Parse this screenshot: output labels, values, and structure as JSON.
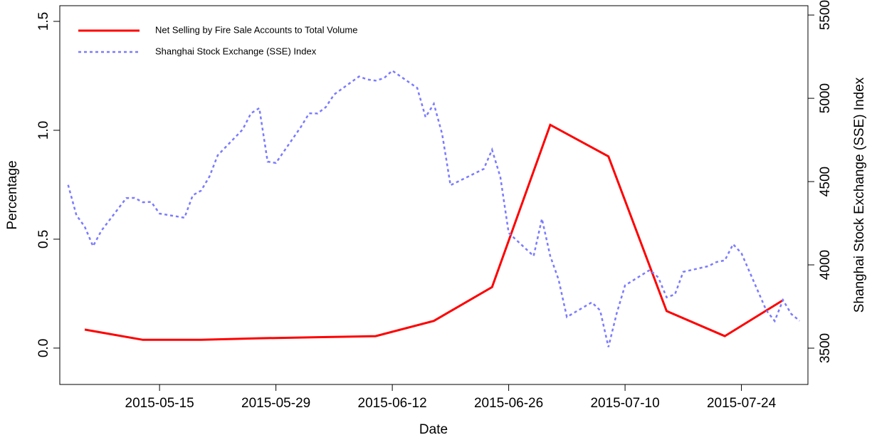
{
  "chart_data": {
    "type": "line",
    "x_label": "Date",
    "y_label": "Percentage",
    "y2_label": "Shanghai Stock Exchange (SSE) Index",
    "xlim": [
      "2015-05-03",
      "2015-08-01"
    ],
    "xticks": [
      "2015-05-15",
      "2015-05-29",
      "2015-06-12",
      "2015-06-26",
      "2015-07-10",
      "2015-07-24"
    ],
    "ylim": [
      -0.167,
      1.572
    ],
    "yticks": [
      {
        "value": 0,
        "label": "0.0"
      },
      0.5,
      {
        "value": 1,
        "label": "1.0"
      },
      1.5
    ],
    "y2lim": [
      3282,
      5556
    ],
    "y2ticks": [
      3500,
      4000,
      4500,
      5000,
      5500
    ],
    "legend": "top-left",
    "series": [
      {
        "name": "Net Selling by Fire Sale Accounts to Total Volume",
        "color": "#ff0000",
        "style": "solid",
        "x": [
          "2015-05-06",
          "2015-05-13",
          "2015-05-20",
          "2015-05-27",
          "2015-06-03",
          "2015-06-10",
          "2015-06-17",
          "2015-06-24",
          "2015-07-01",
          "2015-07-08",
          "2015-07-15",
          "2015-07-22",
          "2015-07-29"
        ],
        "values": [
          0.085,
          0.038,
          0.038,
          0.045,
          0.05,
          0.055,
          0.125,
          0.28,
          1.025,
          0.88,
          0.17,
          0.055,
          0.22
        ]
      },
      {
        "name": "Shanghai Stock Exchange (SSE) Index",
        "color": "#7b7bff",
        "style": "dotted",
        "axis": "y2",
        "x": [
          "2015-05-04",
          "2015-05-05",
          "2015-05-06",
          "2015-05-07",
          "2015-05-08",
          "2015-05-11",
          "2015-05-12",
          "2015-05-13",
          "2015-05-14",
          "2015-05-15",
          "2015-05-18",
          "2015-05-19",
          "2015-05-20",
          "2015-05-21",
          "2015-05-22",
          "2015-05-25",
          "2015-05-26",
          "2015-05-27",
          "2015-05-28",
          "2015-05-29",
          "2015-06-01",
          "2015-06-02",
          "2015-06-03",
          "2015-06-04",
          "2015-06-05",
          "2015-06-08",
          "2015-06-09",
          "2015-06-10",
          "2015-06-11",
          "2015-06-12",
          "2015-06-15",
          "2015-06-16",
          "2015-06-17",
          "2015-06-18",
          "2015-06-19",
          "2015-06-23",
          "2015-06-24",
          "2015-06-25",
          "2015-06-26",
          "2015-06-29",
          "2015-06-30",
          "2015-07-01",
          "2015-07-02",
          "2015-07-03",
          "2015-07-06",
          "2015-07-07",
          "2015-07-08",
          "2015-07-09",
          "2015-07-10",
          "2015-07-13",
          "2015-07-14",
          "2015-07-15",
          "2015-07-16",
          "2015-07-17",
          "2015-07-20",
          "2015-07-21",
          "2015-07-22",
          "2015-07-23",
          "2015-07-24",
          "2015-07-27",
          "2015-07-28",
          "2015-07-29",
          "2015-07-30",
          "2015-07-31"
        ],
        "values": [
          4480,
          4298,
          4229,
          4112,
          4205,
          4401,
          4402,
          4376,
          4378,
          4308,
          4283,
          4418,
          4446,
          4530,
          4658,
          4813,
          4910,
          4941,
          4620,
          4612,
          4828,
          4910,
          4909,
          4947,
          5023,
          5131,
          5113,
          5106,
          5121,
          5166,
          5062,
          4887,
          4967,
          4785,
          4478,
          4576,
          4691,
          4527,
          4192,
          4053,
          4277,
          4053,
          3912,
          3687,
          3775,
          3727,
          3507,
          3710,
          3877,
          3970,
          3924,
          3805,
          3823,
          3958,
          3992,
          4017,
          4027,
          4124,
          4070,
          3726,
          3663,
          3789,
          3705,
          3664
        ]
      }
    ]
  }
}
